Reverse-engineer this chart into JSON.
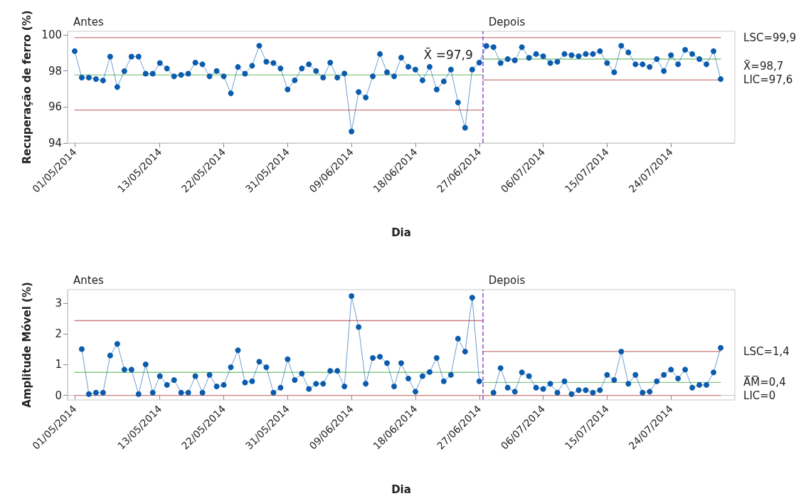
{
  "chart_data": [
    {
      "type": "line",
      "ylabel": "Recuperação de ferro (%)",
      "xlabel": "Dia",
      "x": [
        "2014-05-01",
        "2014-05-02",
        "2014-05-03",
        "2014-05-04",
        "2014-05-05",
        "2014-05-06",
        "2014-05-07",
        "2014-05-08",
        "2014-05-09",
        "2014-05-10",
        "2014-05-11",
        "2014-05-12",
        "2014-05-13",
        "2014-05-14",
        "2014-05-15",
        "2014-05-16",
        "2014-05-17",
        "2014-05-18",
        "2014-05-19",
        "2014-05-20",
        "2014-05-21",
        "2014-05-22",
        "2014-05-23",
        "2014-05-24",
        "2014-05-25",
        "2014-05-26",
        "2014-05-27",
        "2014-05-28",
        "2014-05-29",
        "2014-05-30",
        "2014-05-31",
        "2014-06-01",
        "2014-06-02",
        "2014-06-03",
        "2014-06-04",
        "2014-06-05",
        "2014-06-06",
        "2014-06-07",
        "2014-06-08",
        "2014-06-09",
        "2014-06-10",
        "2014-06-11",
        "2014-06-12",
        "2014-06-13",
        "2014-06-14",
        "2014-06-15",
        "2014-06-16",
        "2014-06-17",
        "2014-06-18",
        "2014-06-19",
        "2014-06-20",
        "2014-06-21",
        "2014-06-22",
        "2014-06-23",
        "2014-06-24",
        "2014-06-25",
        "2014-06-26",
        "2014-06-27",
        "2014-06-28",
        "2014-06-29",
        "2014-06-30",
        "2014-07-01",
        "2014-07-02",
        "2014-07-03",
        "2014-07-04",
        "2014-07-05",
        "2014-07-06",
        "2014-07-07",
        "2014-07-08",
        "2014-07-09",
        "2014-07-10",
        "2014-07-11",
        "2014-07-12",
        "2014-07-13",
        "2014-07-14",
        "2014-07-15",
        "2014-07-16",
        "2014-07-17",
        "2014-07-18",
        "2014-07-19",
        "2014-07-20",
        "2014-07-21",
        "2014-07-22",
        "2014-07-23",
        "2014-07-24",
        "2014-07-25",
        "2014-07-26",
        "2014-07-27",
        "2014-07-28",
        "2014-07-29",
        "2014-07-30",
        "2014-07-31"
      ],
      "series": [
        {
          "color": "#0b5cad",
          "marker": "circle",
          "values": [
            99.1,
            97.63,
            97.63,
            97.55,
            97.47,
            98.8,
            97.11,
            97.99,
            98.8,
            98.8,
            97.85,
            97.85,
            98.44,
            98.14,
            97.7,
            97.78,
            97.85,
            98.46,
            98.37,
            97.7,
            98.0,
            97.7,
            96.76,
            98.22,
            97.85,
            98.29,
            99.4,
            98.51,
            98.44,
            98.14,
            96.97,
            97.48,
            98.14,
            98.37,
            98.0,
            97.63,
            98.46,
            97.63,
            97.86,
            94.64,
            96.83,
            96.53,
            97.7,
            98.94,
            97.93,
            97.7,
            98.74,
            98.23,
            98.08,
            97.48,
            98.23,
            96.97,
            97.42,
            98.08,
            96.25,
            94.85,
            98.08,
            98.46,
            99.39,
            99.32,
            98.44,
            98.66,
            98.59,
            99.32,
            98.73,
            98.94,
            98.82,
            98.44,
            98.51,
            98.94,
            98.88,
            98.82,
            98.94,
            98.94,
            99.1,
            98.44,
            97.93,
            99.4,
            99.03,
            98.37,
            98.37,
            98.22,
            98.66,
            98.0,
            98.88,
            98.37,
            99.17,
            98.94,
            98.66,
            98.37,
            99.1,
            97.55
          ]
        },
        {
          "name": "LSC=99,9",
          "color": "#c97a7a",
          "marker": "none",
          "x": [
            "2014-05-01",
            "2014-07-31"
          ],
          "values": [
            99.85,
            99.85
          ]
        },
        {
          "name": "X̄ =97,9",
          "color": "#86c986",
          "marker": "none",
          "x": [
            "2014-05-01",
            "2014-06-27T12:00"
          ],
          "values": [
            97.78,
            97.78
          ]
        },
        {
          "color": "#c97a7a",
          "marker": "none",
          "x": [
            "2014-05-01",
            "2014-06-27T12:00"
          ],
          "values": [
            95.83,
            95.83
          ]
        },
        {
          "name": "X̄=98,7",
          "color": "#86c986",
          "marker": "none",
          "x": [
            "2014-06-27T12:00",
            "2014-07-31"
          ],
          "values": [
            98.66,
            98.66
          ]
        },
        {
          "name": "LIC=97,6",
          "color": "#c97a7a",
          "marker": "none",
          "x": [
            "2014-06-27T12:00",
            "2014-07-31"
          ],
          "values": [
            97.5,
            97.5
          ]
        }
      ],
      "xlim": [
        "2014-04-30",
        "2014-08-02"
      ],
      "xticks": [
        {
          "value": "2014-05-01",
          "label": "01/05/2014"
        },
        {
          "value": "2014-05-13",
          "label": "13/05/2014"
        },
        {
          "value": "2014-05-22",
          "label": "22/05/2014"
        },
        {
          "value": "2014-05-31",
          "label": "31/05/2014"
        },
        {
          "value": "2014-06-09",
          "label": "09/06/2014"
        },
        {
          "value": "2014-06-18",
          "label": "18/06/2014"
        },
        {
          "value": "2014-06-27",
          "label": "27/06/2014"
        },
        {
          "value": "2014-07-06",
          "label": "06/07/2014"
        },
        {
          "value": "2014-07-15",
          "label": "15/07/2014"
        },
        {
          "value": "2014-07-24",
          "label": "24/07/2014"
        }
      ],
      "ylim": [
        94,
        100.2
      ],
      "yticks": [
        94,
        96,
        98,
        100
      ],
      "ref_lines": [
        {
          "axis": "x",
          "value": "2014-06-27T12:00",
          "color": "#8a4fd8",
          "line_style": "dashed"
        }
      ],
      "annotations": [
        "Antes",
        "Depois"
      ]
    },
    {
      "type": "line",
      "ylabel": "Amplitude Móvel (%)",
      "xlabel": "Dia",
      "series": [
        {
          "color": "#0b5cad",
          "marker": "circle",
          "x": [
            "2014-05-02",
            "2014-05-03",
            "2014-05-04",
            "2014-05-05",
            "2014-05-06",
            "2014-05-07",
            "2014-05-08",
            "2014-05-09",
            "2014-05-10",
            "2014-05-11",
            "2014-05-12",
            "2014-05-13",
            "2014-05-14",
            "2014-05-15",
            "2014-05-16",
            "2014-05-17",
            "2014-05-18",
            "2014-05-19",
            "2014-05-20",
            "2014-05-21",
            "2014-05-22",
            "2014-05-23",
            "2014-05-24",
            "2014-05-25",
            "2014-05-26",
            "2014-05-27",
            "2014-05-28",
            "2014-05-29",
            "2014-05-30",
            "2014-05-31",
            "2014-06-01",
            "2014-06-02",
            "2014-06-03",
            "2014-06-04",
            "2014-06-05",
            "2014-06-06",
            "2014-06-07",
            "2014-06-08",
            "2014-06-09",
            "2014-06-10",
            "2014-06-11",
            "2014-06-12",
            "2014-06-13",
            "2014-06-14",
            "2014-06-15",
            "2014-06-16",
            "2014-06-17",
            "2014-06-18",
            "2014-06-19",
            "2014-06-20",
            "2014-06-21",
            "2014-06-22",
            "2014-06-23",
            "2014-06-24",
            "2014-06-25",
            "2014-06-26",
            "2014-06-27"
          ],
          "values": [
            1.51,
            0.04,
            0.09,
            0.09,
            1.3,
            1.68,
            0.84,
            0.84,
            0.04,
            1.01,
            0.09,
            0.63,
            0.34,
            0.5,
            0.09,
            0.09,
            0.63,
            0.09,
            0.67,
            0.29,
            0.34,
            0.92,
            1.47,
            0.42,
            0.46,
            1.1,
            0.92,
            0.09,
            0.25,
            1.18,
            0.5,
            0.71,
            0.21,
            0.38,
            0.38,
            0.8,
            0.8,
            0.29,
            3.24,
            2.23,
            0.38,
            1.22,
            1.26,
            1.05,
            0.29,
            1.05,
            0.55,
            0.12,
            0.63,
            0.76,
            1.22,
            0.46,
            0.67,
            1.85,
            1.43,
            3.19,
            0.46
          ]
        },
        {
          "color": "#0b5cad",
          "marker": "circle",
          "x": [
            "2014-06-29",
            "2014-06-30",
            "2014-07-01",
            "2014-07-02",
            "2014-07-03",
            "2014-07-04",
            "2014-07-05",
            "2014-07-06",
            "2014-07-07",
            "2014-07-08",
            "2014-07-09",
            "2014-07-10",
            "2014-07-11",
            "2014-07-12",
            "2014-07-13",
            "2014-07-14",
            "2014-07-15",
            "2014-07-16",
            "2014-07-17",
            "2014-07-18",
            "2014-07-19",
            "2014-07-20",
            "2014-07-21",
            "2014-07-22",
            "2014-07-23",
            "2014-07-24",
            "2014-07-25",
            "2014-07-26",
            "2014-07-27",
            "2014-07-28",
            "2014-07-29",
            "2014-07-30",
            "2014-07-31"
          ],
          "values": [
            0.09,
            0.89,
            0.25,
            0.12,
            0.75,
            0.63,
            0.25,
            0.21,
            0.38,
            0.09,
            0.46,
            0.04,
            0.17,
            0.17,
            0.09,
            0.17,
            0.67,
            0.5,
            1.43,
            0.38,
            0.67,
            0.09,
            0.12,
            0.46,
            0.67,
            0.84,
            0.55,
            0.84,
            0.25,
            0.34,
            0.34,
            0.75,
            1.55
          ]
        },
        {
          "color": "#c97a7a",
          "marker": "none",
          "x": [
            "2014-05-01",
            "2014-06-27T12:00"
          ],
          "values": [
            2.44,
            2.44
          ]
        },
        {
          "color": "#86c986",
          "marker": "none",
          "x": [
            "2014-05-01",
            "2014-06-27T12:00"
          ],
          "values": [
            0.75,
            0.75
          ]
        },
        {
          "name": "LIC=0",
          "color": "#c97a7a",
          "marker": "none",
          "x": [
            "2014-05-01",
            "2014-07-31"
          ],
          "values": [
            0,
            0
          ]
        },
        {
          "name": "LSC=1,4",
          "color": "#c97a7a",
          "marker": "none",
          "x": [
            "2014-06-27T12:00",
            "2014-07-31"
          ],
          "values": [
            1.43,
            1.43
          ]
        },
        {
          "name": "A̅M̅=0,4",
          "color": "#86c986",
          "marker": "none",
          "x": [
            "2014-06-27T12:00",
            "2014-07-31"
          ],
          "values": [
            0.42,
            0.42
          ]
        }
      ],
      "xlim": [
        "2014-04-30",
        "2014-08-02"
      ],
      "xticks": [
        {
          "value": "2014-05-01",
          "label": "01/05/2014"
        },
        {
          "value": "2014-05-13",
          "label": "13/05/2014"
        },
        {
          "value": "2014-05-22",
          "label": "22/05/2014"
        },
        {
          "value": "2014-05-31",
          "label": "31/05/2014"
        },
        {
          "value": "2014-06-09",
          "label": "09/06/2014"
        },
        {
          "value": "2014-06-18",
          "label": "18/06/2014"
        },
        {
          "value": "2014-06-27",
          "label": "27/06/2014"
        },
        {
          "value": "2014-07-06",
          "label": "06/07/2014"
        },
        {
          "value": "2014-07-15",
          "label": "15/07/2014"
        },
        {
          "value": "2014-07-24",
          "label": "24/07/2014"
        }
      ],
      "ylim": [
        -0.15,
        3.45
      ],
      "yticks": [
        0,
        1,
        2,
        3
      ],
      "ref_lines": [
        {
          "axis": "x",
          "value": "2014-06-27T12:00",
          "color": "#8a4fd8",
          "line_style": "dashed"
        }
      ],
      "annotations": [
        "Antes",
        "Depois"
      ]
    }
  ]
}
